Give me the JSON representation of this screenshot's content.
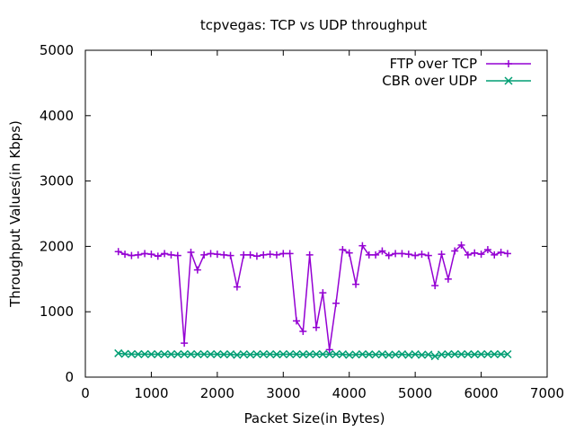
{
  "chart_data": {
    "type": "line",
    "title": "tcpvegas: TCP vs UDP throughput",
    "xlabel": "Packet Size(in Bytes)",
    "ylabel": "Throughput Values(in Kbps)",
    "xlim": [
      0,
      7000
    ],
    "ylim": [
      0,
      5000
    ],
    "xticks": [
      0,
      1000,
      2000,
      3000,
      4000,
      5000,
      6000,
      7000
    ],
    "yticks": [
      0,
      1000,
      2000,
      3000,
      4000,
      5000
    ],
    "xtick_labels": [
      "0",
      "1000",
      "2000",
      "3000",
      "4000",
      "5000",
      "6000",
      "7000"
    ],
    "ytick_labels": [
      "0",
      "1000",
      "2000",
      "3000",
      "4000",
      "5000"
    ],
    "grid": false,
    "legend_position": "top-right",
    "x": [
      500,
      600,
      700,
      800,
      900,
      1000,
      1100,
      1200,
      1300,
      1400,
      1500,
      1600,
      1700,
      1800,
      1900,
      2000,
      2100,
      2200,
      2300,
      2400,
      2500,
      2600,
      2700,
      2800,
      2900,
      3000,
      3100,
      3200,
      3300,
      3400,
      3500,
      3600,
      3700,
      3800,
      3900,
      4000,
      4100,
      4200,
      4300,
      4400,
      4500,
      4600,
      4700,
      4800,
      4900,
      5000,
      5100,
      5200,
      5300,
      5400,
      5500,
      5600,
      5700,
      5800,
      5900,
      6000,
      6100,
      6200,
      6300,
      6400
    ],
    "series": [
      {
        "name": "FTP over TCP",
        "color": "#9400d3",
        "marker": "plus",
        "values": [
          1920,
          1880,
          1860,
          1870,
          1890,
          1880,
          1850,
          1890,
          1870,
          1860,
          520,
          1910,
          1640,
          1870,
          1890,
          1880,
          1870,
          1860,
          1380,
          1870,
          1870,
          1850,
          1870,
          1880,
          1870,
          1890,
          1890,
          860,
          700,
          1870,
          760,
          1290,
          420,
          1130,
          1950,
          1900,
          1420,
          2010,
          1870,
          1870,
          1930,
          1860,
          1890,
          1890,
          1880,
          1860,
          1880,
          1860,
          1400,
          1880,
          1500,
          1930,
          2020,
          1870,
          1900,
          1880,
          1950,
          1870,
          1910,
          1890
        ]
      },
      {
        "name": "CBR over UDP",
        "color": "#009e73",
        "marker": "cross",
        "values": [
          365,
          355,
          352,
          350,
          352,
          350,
          350,
          350,
          350,
          350,
          350,
          350,
          350,
          350,
          350,
          350,
          348,
          350,
          340,
          350,
          345,
          350,
          350,
          350,
          348,
          350,
          350,
          350,
          348,
          350,
          350,
          350,
          350,
          350,
          350,
          340,
          345,
          350,
          348,
          345,
          350,
          340,
          345,
          350,
          340,
          350,
          340,
          345,
          320,
          345,
          350,
          350,
          350,
          350,
          348,
          350,
          350,
          350,
          350,
          350
        ]
      }
    ]
  }
}
